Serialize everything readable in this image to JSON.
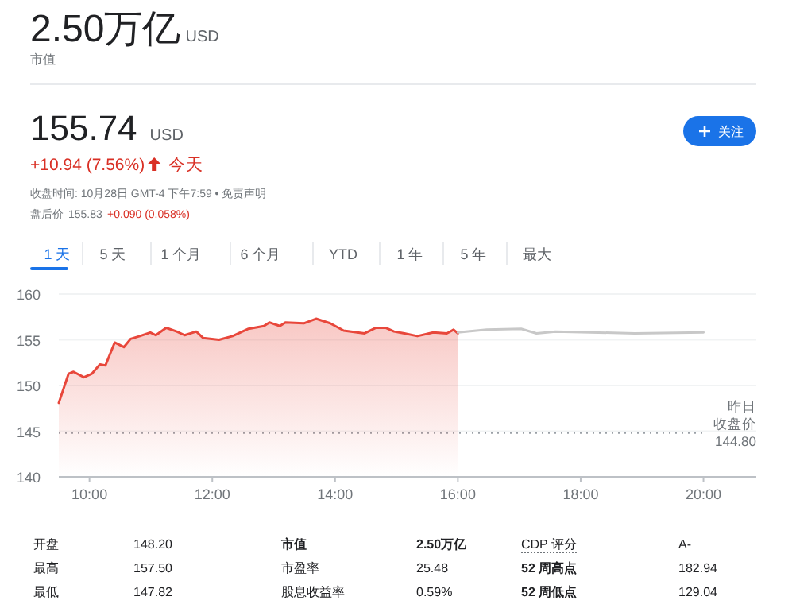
{
  "chart_data": [
    {
      "type": "other",
      "annotations": [
        "2.50万亿",
        "USD",
        "市值",
        "155.74",
        "USD",
        "+10.94 (7.56%)",
        "今天",
        "收盘时间: 10月28日 GMT-4 下午7:59 • 免责声明",
        "盘后价",
        "155.83",
        "+0.090 (0.058%)",
        "关注",
        "1 天",
        "5 天",
        "1 个月",
        "6 个月",
        "YTD",
        "1 年",
        "5 年",
        "最大"
      ]
    },
    {
      "type": "line",
      "xlim": [
        9.5,
        20.86
      ],
      "ylim": [
        140,
        160
      ],
      "xticks": [
        {
          "value": 10,
          "label": "10:00"
        },
        {
          "value": 12,
          "label": "12:00"
        },
        {
          "value": 14,
          "label": "14:00"
        },
        {
          "value": 16,
          "label": "16:00"
        },
        {
          "value": 18,
          "label": "18:00"
        },
        {
          "value": 20,
          "label": "20:00"
        }
      ],
      "yticks": [
        140,
        145,
        150,
        155,
        160
      ],
      "grid": "y",
      "ref_lines": [
        {
          "axis": "y",
          "value": 144.8,
          "label": "昨日收盘价 144.80",
          "line_style": "dotted",
          "color": "#9aa0a6"
        }
      ],
      "series": [
        {
          "type": "area",
          "color": "#e8473b",
          "x": [
            9.5,
            9.66,
            9.74,
            9.91,
            10.04,
            10.17,
            10.26,
            10.41,
            10.56,
            10.67,
            10.82,
            10.99,
            11.08,
            11.25,
            11.42,
            11.55,
            11.74,
            11.85,
            12.11,
            12.33,
            12.59,
            12.84,
            12.93,
            13.1,
            13.19,
            13.49,
            13.69,
            13.92,
            14.14,
            14.48,
            14.66,
            14.83,
            14.96,
            15.13,
            15.34,
            15.6,
            15.82,
            15.93,
            16.0
          ],
          "values": [
            148.1,
            151.3,
            151.5,
            150.9,
            151.3,
            152.3,
            152.2,
            154.7,
            154.2,
            155.1,
            155.4,
            155.8,
            155.5,
            156.3,
            155.9,
            155.5,
            155.9,
            155.2,
            155.0,
            155.4,
            156.2,
            156.5,
            156.9,
            156.5,
            156.9,
            156.8,
            157.3,
            156.8,
            156.0,
            155.7,
            156.3,
            156.3,
            155.9,
            155.7,
            155.4,
            155.8,
            155.7,
            156.1,
            155.7
          ]
        },
        {
          "type": "line",
          "color": "#c8c8c8",
          "x": [
            16.0,
            16.47,
            17.03,
            17.28,
            17.59,
            18.88,
            20.0
          ],
          "values": [
            155.8,
            156.1,
            156.2,
            155.7,
            155.9,
            155.7,
            155.8
          ]
        }
      ]
    },
    {
      "type": "other",
      "annotations": [
        "开盘",
        "148.20",
        "市值",
        "2.50万亿",
        "CDP 评分",
        "A-",
        "最高",
        "157.50",
        "市盈率",
        "25.48",
        "52 周高点",
        "182.94",
        "最低",
        "147.82",
        "股息收益率",
        "0.59%",
        "52 周低点",
        "129.04"
      ]
    }
  ]
}
